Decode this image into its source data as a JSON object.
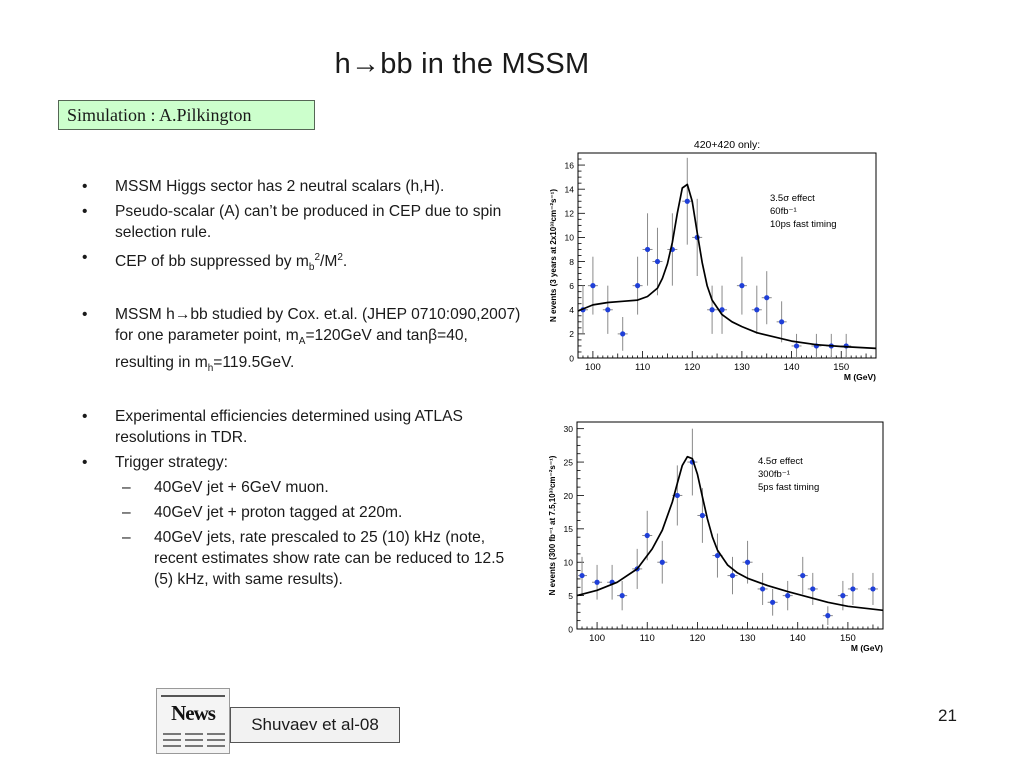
{
  "slide": {
    "title": "h→bb in the MSSM",
    "simulation_box": "Simulation : A.Pilkington",
    "bullets": [
      {
        "marker": "•",
        "html": "MSSM Higgs sector has 2 neutral scalars (h,H)."
      },
      {
        "marker": "•",
        "html": "Pseudo-scalar (A) can’t be produced in CEP due to spin selection rule."
      },
      {
        "marker": "•",
        "html": "CEP of bb suppressed by m<sub>b</sub><sup>2</sup>/M<sup>2</sup>."
      },
      {
        "marker": "•",
        "html": "MSSM h→bb studied by Cox. et.al. (JHEP 0710:090,2007) for one parameter point, m<sub>A</sub>=120GeV and tanβ=40, resulting in m<sub>h</sub>=119.5GeV."
      },
      {
        "marker": "•",
        "html": "Experimental efficiencies determined using ATLAS resolutions in TDR."
      },
      {
        "marker": "•",
        "html": "Trigger strategy:"
      },
      {
        "marker": "–",
        "html": "40GeV jet + 6GeV muon."
      },
      {
        "marker": "–",
        "html": "40GeV jet + proton tagged at 220m."
      },
      {
        "marker": "–",
        "html": "40GeV jets, rate prescaled to 25 (10) kHz (note, recent estimates show rate can be reduced to 12.5 (5) kHz, with same results)."
      }
    ],
    "news_label": "News",
    "reference": "Shuvaev et al-08",
    "page_number": "21"
  },
  "chart_data": [
    {
      "type": "scatter",
      "title": "420+420 only:",
      "xlabel": "M (GeV)",
      "ylabel": "N events (3 years at 2x10³³cm⁻²s⁻¹)",
      "xlim": [
        97,
        157
      ],
      "ylim": [
        0,
        17
      ],
      "xticks": [
        100,
        110,
        120,
        130,
        140,
        150
      ],
      "yticks": [
        0,
        2,
        4,
        6,
        8,
        10,
        12,
        14,
        16
      ],
      "annotation": [
        "3.5σ effect",
        "60fb⁻¹",
        "10ps fast timing"
      ],
      "marker_color": "#1f3fd8",
      "x": [
        98,
        100,
        103,
        106,
        109,
        111,
        113,
        116,
        119,
        121,
        124,
        126,
        130,
        133,
        135,
        138,
        141,
        145,
        148,
        151
      ],
      "y": [
        4,
        6,
        4,
        2,
        6,
        9,
        8,
        9,
        13,
        10,
        4,
        4,
        6,
        4,
        5,
        3,
        1,
        1,
        1,
        1
      ],
      "yerr": [
        2,
        2.4,
        2,
        1.4,
        2.4,
        3,
        2.8,
        3,
        3.6,
        3.2,
        2,
        2,
        2.4,
        2,
        2.2,
        1.7,
        1,
        1,
        1,
        1
      ],
      "curve_x": [
        97,
        100,
        103,
        106,
        109,
        111,
        113,
        114,
        115,
        116,
        117,
        118,
        119,
        120,
        121,
        122,
        123,
        124,
        126,
        128,
        130,
        133,
        136,
        140,
        145,
        150,
        157
      ],
      "curve_y": [
        3.9,
        4.4,
        4.6,
        4.7,
        4.8,
        5.1,
        5.8,
        6.6,
        7.8,
        9.6,
        12.0,
        14.1,
        14.4,
        13.0,
        10.4,
        7.9,
        6.0,
        4.8,
        3.6,
        3.0,
        2.6,
        2.1,
        1.8,
        1.4,
        1.1,
        0.95,
        0.8
      ]
    },
    {
      "type": "scatter",
      "title": "",
      "xlabel": "M (GeV)",
      "ylabel": "N events (300 fb⁻¹ at 7.5,10³³cm⁻²s⁻¹)",
      "xlim": [
        96,
        157
      ],
      "ylim": [
        0,
        31
      ],
      "xticks": [
        100,
        110,
        120,
        130,
        140,
        150
      ],
      "yticks": [
        0,
        5,
        10,
        15,
        20,
        25,
        30
      ],
      "annotation": [
        "4.5σ effect",
        "300fb⁻¹",
        "5ps fast timing"
      ],
      "marker_color": "#1f3fd8",
      "x": [
        97,
        100,
        103,
        105,
        108,
        110,
        113,
        116,
        119,
        121,
        124,
        127,
        130,
        133,
        135,
        138,
        141,
        143,
        146,
        149,
        151,
        155
      ],
      "y": [
        8,
        7,
        7,
        5,
        9,
        14,
        10,
        20,
        25,
        17,
        11,
        8,
        10,
        6,
        4,
        5,
        8,
        6,
        2,
        5,
        6,
        6
      ],
      "yerr": [
        2.8,
        2.6,
        2.6,
        2.2,
        3,
        3.7,
        3.2,
        4.5,
        5,
        4.1,
        3.3,
        2.8,
        3.2,
        2.4,
        2,
        2.2,
        2.8,
        2.4,
        1.4,
        2.2,
        2.4,
        2.4
      ],
      "curve_x": [
        96,
        100,
        104,
        108,
        111,
        113,
        115,
        116,
        117,
        118,
        119,
        120,
        121,
        122,
        123,
        124,
        126,
        128,
        130,
        134,
        138,
        142,
        146,
        150,
        157
      ],
      "curve_y": [
        5.0,
        5.8,
        7.0,
        9.0,
        12.0,
        14.8,
        19.0,
        21.8,
        24.5,
        25.8,
        25.5,
        23.2,
        19.8,
        16.5,
        13.8,
        11.8,
        9.6,
        8.4,
        7.6,
        6.5,
        5.6,
        4.8,
        4.0,
        3.4,
        2.8
      ]
    }
  ]
}
